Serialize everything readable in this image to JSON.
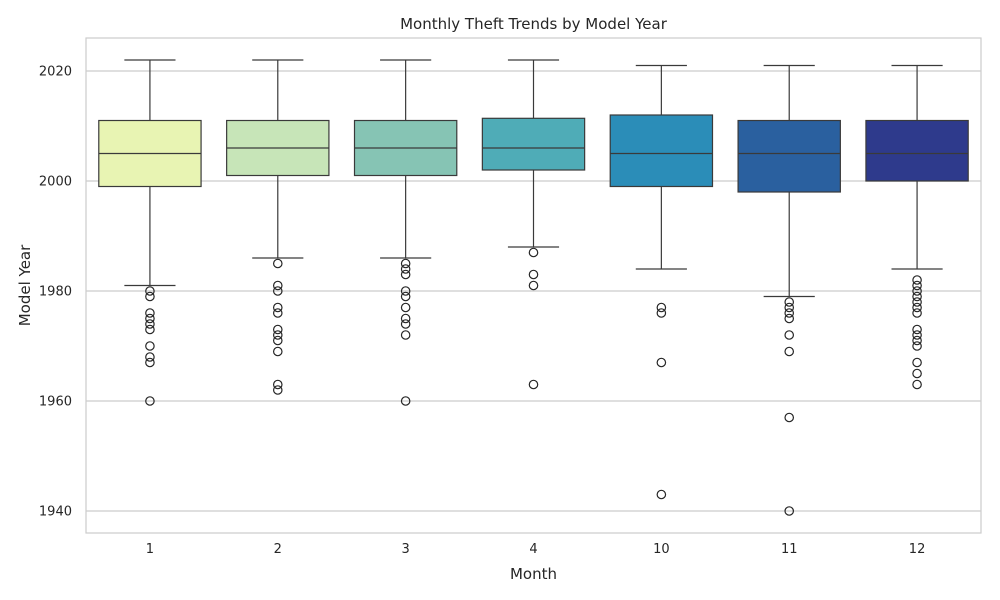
{
  "chart_data": {
    "type": "box",
    "title": "Monthly Theft Trends by Model Year",
    "xlabel": "Month",
    "ylabel": "Model Year",
    "ylim": [
      1936,
      2026
    ],
    "yticks": [
      1940,
      1960,
      1980,
      2000,
      2020
    ],
    "grid": "horizontal",
    "categories": [
      "1",
      "2",
      "3",
      "4",
      "10",
      "11",
      "12"
    ],
    "boxes": [
      {
        "category": "1",
        "whisker_low": 1981,
        "q1": 1999,
        "median": 2005,
        "q3": 2011,
        "whisker_high": 2022,
        "outliers": [
          1980,
          1979,
          1976,
          1975,
          1974,
          1973,
          1970,
          1968,
          1967,
          1960
        ],
        "color": "#e8f4b3"
      },
      {
        "category": "2",
        "whisker_low": 1986,
        "q1": 2001,
        "median": 2006,
        "q3": 2011,
        "whisker_high": 2022,
        "outliers": [
          1985,
          1981,
          1980,
          1977,
          1976,
          1973,
          1972,
          1971,
          1969,
          1963,
          1962
        ],
        "color": "#c7e5b8"
      },
      {
        "category": "3",
        "whisker_low": 1986,
        "q1": 2001,
        "median": 2006,
        "q3": 2011,
        "whisker_high": 2022,
        "outliers": [
          1985,
          1984,
          1983,
          1980,
          1979,
          1977,
          1975,
          1974,
          1972,
          1960
        ],
        "color": "#86c4b4"
      },
      {
        "category": "4",
        "whisker_low": 1988,
        "q1": 2002,
        "median": 2006,
        "q3": 2011.4,
        "whisker_high": 2022,
        "outliers": [
          1987,
          1983,
          1981,
          1963
        ],
        "color": "#4facb7"
      },
      {
        "category": "10",
        "whisker_low": 1984,
        "q1": 1999,
        "median": 2005,
        "q3": 2012,
        "whisker_high": 2021,
        "outliers": [
          1977,
          1976,
          1967,
          1943
        ],
        "color": "#2b8db8"
      },
      {
        "category": "11",
        "whisker_low": 1979,
        "q1": 1998,
        "median": 2005,
        "q3": 2011,
        "whisker_high": 2021,
        "outliers": [
          1978,
          1977,
          1976,
          1975,
          1972,
          1969,
          1957,
          1940
        ],
        "color": "#2a609f"
      },
      {
        "category": "12",
        "whisker_low": 1984,
        "q1": 2000,
        "median": 2005,
        "q3": 2011,
        "whisker_high": 2021,
        "outliers": [
          1982,
          1981,
          1980,
          1979,
          1978,
          1977,
          1976,
          1973,
          1972,
          1971,
          1970,
          1967,
          1965,
          1963
        ],
        "color": "#2e3a8c"
      }
    ]
  }
}
